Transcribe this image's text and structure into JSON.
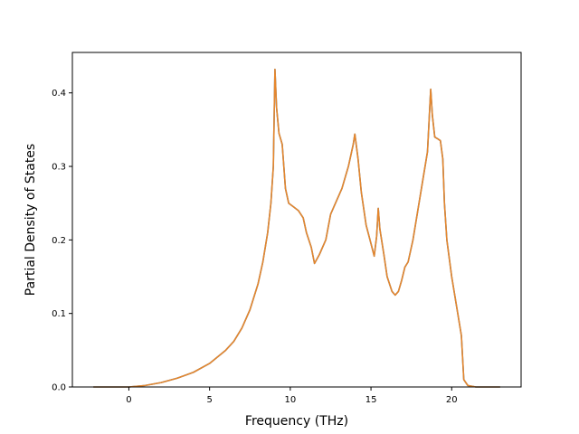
{
  "chart_data": {
    "type": "line",
    "title": "",
    "xlabel": "Frequency (THz)",
    "ylabel": "Partial Density of States",
    "xlim": [
      -3.5,
      24.3
    ],
    "ylim": [
      0.0,
      0.455
    ],
    "xticks": [
      0,
      5,
      10,
      15,
      20
    ],
    "xtick_labels": [
      "0",
      "5",
      "10",
      "15",
      "20"
    ],
    "yticks": [
      0.0,
      0.1,
      0.2,
      0.3,
      0.4
    ],
    "ytick_labels": [
      "0.0",
      "0.1",
      "0.2",
      "0.3",
      "0.4"
    ],
    "grid": false,
    "legend": "none",
    "series": [
      {
        "color": "#e6862c",
        "x": [
          -2.2,
          -1.0,
          0.0,
          1.0,
          2.0,
          3.0,
          4.0,
          5.0,
          6.0,
          6.5,
          7.0,
          7.5,
          8.0,
          8.3,
          8.6,
          8.8,
          8.95,
          9.05,
          9.15,
          9.3,
          9.5,
          9.7,
          9.9,
          10.2,
          10.5,
          10.8,
          11.0,
          11.3,
          11.5,
          11.8,
          12.2,
          12.5,
          12.8,
          13.2,
          13.6,
          13.9,
          14.0,
          14.2,
          14.4,
          14.7,
          15.0,
          15.2,
          15.35,
          15.45,
          15.55,
          15.8,
          16.0,
          16.3,
          16.5,
          16.7,
          16.9,
          17.1,
          17.3,
          17.6,
          17.9,
          18.2,
          18.5,
          18.7,
          18.8,
          18.95,
          19.1,
          19.3,
          19.45,
          19.55,
          19.7,
          20.0,
          20.3,
          20.6,
          20.75,
          21.0,
          21.5,
          22.2,
          23.0
        ],
        "y": [
          0.0,
          0.0,
          0.0,
          0.002,
          0.006,
          0.012,
          0.02,
          0.032,
          0.05,
          0.062,
          0.08,
          0.105,
          0.14,
          0.17,
          0.21,
          0.25,
          0.3,
          0.432,
          0.38,
          0.345,
          0.33,
          0.27,
          0.25,
          0.245,
          0.24,
          0.23,
          0.21,
          0.19,
          0.168,
          0.18,
          0.2,
          0.235,
          0.25,
          0.27,
          0.3,
          0.33,
          0.344,
          0.31,
          0.265,
          0.22,
          0.195,
          0.178,
          0.205,
          0.243,
          0.215,
          0.18,
          0.15,
          0.13,
          0.125,
          0.13,
          0.145,
          0.163,
          0.17,
          0.2,
          0.24,
          0.28,
          0.32,
          0.405,
          0.37,
          0.34,
          0.338,
          0.335,
          0.31,
          0.25,
          0.2,
          0.15,
          0.11,
          0.07,
          0.01,
          0.002,
          0.0,
          0.0,
          0.0
        ]
      },
      {
        "color": "#2f7fbf",
        "x": [
          -2.2,
          -1.0,
          0.0,
          1.0,
          2.0,
          3.0,
          4.0,
          5.0,
          6.0,
          6.5,
          7.0,
          7.5,
          8.0,
          8.3,
          8.6,
          8.8,
          8.95,
          9.05,
          9.15,
          9.3,
          9.5,
          9.7,
          9.9,
          10.2,
          10.5,
          10.8,
          11.0,
          11.3,
          11.5,
          11.8,
          12.2,
          12.5,
          12.8,
          13.2,
          13.6,
          13.9,
          14.0,
          14.2,
          14.4,
          14.7,
          15.0,
          15.2,
          15.35,
          15.45,
          15.55,
          15.8,
          16.0,
          16.3,
          16.5,
          16.7,
          16.9,
          17.1,
          17.3,
          17.6,
          17.9,
          18.2,
          18.5,
          18.7,
          18.8,
          18.95,
          19.1,
          19.3,
          19.45,
          19.55,
          19.7,
          20.0,
          20.3,
          20.6,
          20.75,
          21.0,
          21.5,
          22.2,
          23.0
        ],
        "y": [
          0.0,
          0.0,
          0.0,
          0.002,
          0.006,
          0.012,
          0.02,
          0.032,
          0.05,
          0.062,
          0.08,
          0.105,
          0.14,
          0.17,
          0.21,
          0.25,
          0.3,
          0.432,
          0.38,
          0.345,
          0.33,
          0.27,
          0.25,
          0.245,
          0.24,
          0.23,
          0.21,
          0.19,
          0.168,
          0.18,
          0.2,
          0.235,
          0.25,
          0.27,
          0.3,
          0.33,
          0.344,
          0.31,
          0.265,
          0.22,
          0.195,
          0.178,
          0.205,
          0.243,
          0.215,
          0.18,
          0.15,
          0.13,
          0.125,
          0.13,
          0.145,
          0.163,
          0.17,
          0.2,
          0.24,
          0.28,
          0.32,
          0.405,
          0.37,
          0.34,
          0.338,
          0.335,
          0.31,
          0.25,
          0.2,
          0.15,
          0.11,
          0.07,
          0.01,
          0.002,
          0.0,
          0.0,
          0.0
        ]
      }
    ]
  }
}
